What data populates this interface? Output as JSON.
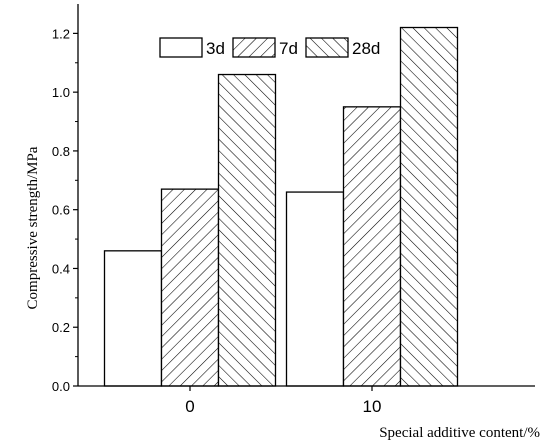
{
  "chart_data": {
    "type": "bar",
    "title": "",
    "xlabel": "Special additive content/%",
    "ylabel": "Compressive strength/MPa",
    "categories": [
      "0",
      "10"
    ],
    "series": [
      {
        "name": "3d",
        "values": [
          0.46,
          0.66
        ],
        "pattern": "none"
      },
      {
        "name": "7d",
        "values": [
          0.67,
          0.95
        ],
        "pattern": "forward-hatch"
      },
      {
        "name": "28d",
        "values": [
          1.06,
          1.22
        ],
        "pattern": "backward-hatch"
      }
    ],
    "ylim": [
      0,
      1.3
    ],
    "yticks": [
      "0.0",
      "0.2",
      "0.4",
      "0.6",
      "0.8",
      "1.0",
      "1.2"
    ],
    "legend_position": "top",
    "grid": false
  }
}
